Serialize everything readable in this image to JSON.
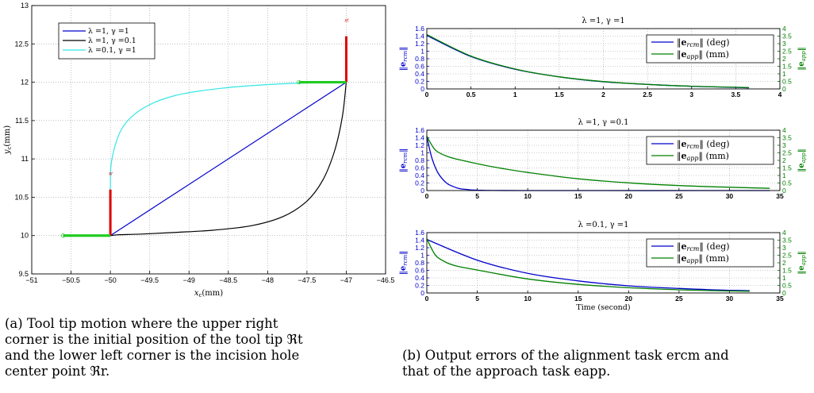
{
  "figure_a": {
    "caption_lines": [
      "(a)  Tool tip motion where the upper right",
      "corner is the initial position of the tool tip ℜt",
      "and the lower left corner is the incision hole",
      "center point ℜr."
    ]
  },
  "figure_b": {
    "caption_lines": [
      "(b) Output errors of the alignment task ercm and",
      "that of the approach task eapp."
    ]
  },
  "colors": {
    "blue": "#0000cc",
    "black": "#000000",
    "cyan": "#33e6e6",
    "green": "#008000",
    "red": "#dd0000",
    "bright_green": "#22cc22"
  },
  "chart_data": [
    {
      "id": "trajectory",
      "type": "line",
      "title": "",
      "xlabel": "xc(mm)",
      "ylabel": "yc(mm)",
      "xlim": [
        -51,
        -46.5
      ],
      "ylim": [
        9.5,
        13
      ],
      "xticks": [
        -51,
        -50.5,
        -50,
        -49.5,
        -49,
        -48.5,
        -48,
        -47.5,
        -47,
        -46.5
      ],
      "yticks": [
        9.5,
        10,
        10.5,
        11,
        11.5,
        12,
        12.5,
        13
      ],
      "xtick_labels": [
        "−51",
        "−50.5",
        "−50",
        "−49.5",
        "−49",
        "−48.5",
        "−48",
        "−47.5",
        "−47",
        "−46.5"
      ],
      "ytick_labels": [
        "9.5",
        "10",
        "10.5",
        "11",
        "11.5",
        "12",
        "12.5",
        "13"
      ],
      "grid": true,
      "legend_position": "top-left",
      "series": [
        {
          "name": "λ =1, γ =1",
          "color": "blue",
          "x": [
            -47.0,
            -50.0
          ],
          "y": [
            12.0,
            10.0
          ]
        },
        {
          "name": "λ =1, γ =0.1",
          "color": "black",
          "x": [
            -47.0,
            -47.05,
            -47.15,
            -47.3,
            -47.5,
            -47.8,
            -48.2,
            -48.7,
            -49.2,
            -49.6,
            -49.9,
            -50.0
          ],
          "y": [
            12.0,
            11.55,
            11.1,
            10.72,
            10.45,
            10.25,
            10.13,
            10.07,
            10.04,
            10.02,
            10.01,
            10.0
          ]
        },
        {
          "name": "λ =0.1, γ =1",
          "color": "cyan",
          "x": [
            -47.0,
            -47.8,
            -48.6,
            -49.2,
            -49.6,
            -49.85,
            -49.98,
            -50.0,
            -50.0
          ],
          "y": [
            12.0,
            11.98,
            11.92,
            11.82,
            11.65,
            11.4,
            11.0,
            10.6,
            10.05
          ]
        }
      ],
      "markers": [
        {
          "label": "xt",
          "x": -47.0,
          "y": 12.0
        },
        {
          "label": "xr",
          "x": -50.0,
          "y": 10.0
        }
      ],
      "tool_frames": [
        {
          "origin": [
            -47.0,
            12.0
          ],
          "red_end": [
            -47.0,
            12.6
          ],
          "green_end": [
            -47.6,
            12.0
          ]
        },
        {
          "origin": [
            -50.0,
            10.0
          ],
          "red_end": [
            -50.0,
            10.6
          ],
          "green_end": [
            -50.6,
            10.0
          ]
        }
      ]
    },
    {
      "id": "errors-1",
      "type": "line",
      "title": "λ =1, γ =1",
      "xlabel": "",
      "ylabel_left": "||ercm||",
      "ylabel_right": "||eapp||",
      "xlim": [
        0,
        4
      ],
      "ylim_left": [
        0,
        1.6
      ],
      "ylim_right": [
        0,
        4
      ],
      "xticks": [
        0,
        0.5,
        1,
        1.5,
        2,
        2.5,
        3,
        3.5,
        4
      ],
      "xtick_labels": [
        "0",
        "0.5",
        "1",
        "1.5",
        "2",
        "2.5",
        "3",
        "3.5",
        "4"
      ],
      "yticks_left": [
        0,
        0.2,
        0.4,
        0.6,
        0.8,
        1,
        1.2,
        1.4,
        1.6
      ],
      "ytick_labels_left": [
        "0",
        "0.2",
        "0.4",
        "0.6",
        "0.8",
        "1",
        "1.2",
        "1.4",
        "1.6"
      ],
      "yticks_right": [
        0,
        0.5,
        1,
        1.5,
        2,
        2.5,
        3,
        3.5,
        4
      ],
      "ytick_labels_right": [
        "0",
        "0.5",
        "1",
        "1.5",
        "2",
        "2.5",
        "3",
        "3.5",
        "4"
      ],
      "grid": true,
      "legend_position": "right",
      "legend": [
        "||ercm|| (deg)",
        "||eapp|| (mm)"
      ],
      "series": [
        {
          "name": "||ercm|| (deg)",
          "color": "blue",
          "axis": "left",
          "x": [
            0,
            0.5,
            1,
            1.5,
            2,
            2.5,
            3,
            3.5,
            3.65
          ],
          "y": [
            1.42,
            0.86,
            0.52,
            0.32,
            0.19,
            0.12,
            0.07,
            0.04,
            0.03
          ]
        },
        {
          "name": "||eapp|| (mm)",
          "color": "green",
          "axis": "right",
          "x": [
            0,
            0.5,
            1,
            1.5,
            2,
            2.5,
            3,
            3.5,
            3.65
          ],
          "y": [
            3.6,
            2.18,
            1.32,
            0.8,
            0.49,
            0.3,
            0.18,
            0.11,
            0.09
          ]
        }
      ]
    },
    {
      "id": "errors-2",
      "type": "line",
      "title": "λ =1, γ =0.1",
      "xlabel": "",
      "ylabel_left": "||ercm||",
      "ylabel_right": "||eapp||",
      "xlim": [
        0,
        35
      ],
      "ylim_left": [
        0,
        1.6
      ],
      "ylim_right": [
        0,
        4
      ],
      "xticks": [
        0,
        5,
        10,
        15,
        20,
        25,
        30,
        35
      ],
      "xtick_labels": [
        "0",
        "5",
        "10",
        "15",
        "20",
        "25",
        "30",
        "35"
      ],
      "yticks_left": [
        0,
        0.2,
        0.4,
        0.6,
        0.8,
        1,
        1.2,
        1.4,
        1.6
      ],
      "ytick_labels_left": [
        "0",
        "0.2",
        "0.4",
        "0.6",
        "0.8",
        "1",
        "1.2",
        "1.4",
        "1.6"
      ],
      "yticks_right": [
        0,
        0.5,
        1,
        1.5,
        2,
        2.5,
        3,
        3.5,
        4
      ],
      "ytick_labels_right": [
        "0",
        "0.5",
        "1",
        "1.5",
        "2",
        "2.5",
        "3",
        "3.5",
        "4"
      ],
      "grid": true,
      "legend_position": "right",
      "legend": [
        "||ercm|| (deg)",
        "||eapp|| (mm)"
      ],
      "series": [
        {
          "name": "||ercm|| (deg)",
          "color": "blue",
          "axis": "left",
          "x": [
            0,
            0.5,
            1,
            1.5,
            2,
            2.5,
            3,
            3.5,
            4,
            5,
            10,
            34
          ],
          "y": [
            1.42,
            0.86,
            0.52,
            0.32,
            0.19,
            0.12,
            0.07,
            0.04,
            0.03,
            0.01,
            0.0,
            0.0
          ]
        },
        {
          "name": "||eapp|| (mm)",
          "color": "green",
          "axis": "right",
          "x": [
            0,
            0.5,
            1,
            2,
            3,
            5,
            7,
            10,
            15,
            20,
            25,
            30,
            34
          ],
          "y": [
            3.6,
            3.0,
            2.6,
            2.27,
            2.08,
            1.78,
            1.52,
            1.2,
            0.78,
            0.51,
            0.33,
            0.22,
            0.15
          ]
        }
      ]
    },
    {
      "id": "errors-3",
      "type": "line",
      "title": "λ =0.1, γ =1",
      "xlabel": "Time (second)",
      "ylabel_left": "||ercm||",
      "ylabel_right": "||eapp||",
      "xlim": [
        0,
        35
      ],
      "ylim_left": [
        0,
        1.6
      ],
      "ylim_right": [
        0,
        4
      ],
      "xticks": [
        0,
        5,
        10,
        15,
        20,
        25,
        30,
        35
      ],
      "xtick_labels": [
        "0",
        "5",
        "10",
        "15",
        "20",
        "25",
        "30",
        "35"
      ],
      "yticks_left": [
        0,
        0.2,
        0.4,
        0.6,
        0.8,
        1,
        1.2,
        1.4,
        1.6
      ],
      "ytick_labels_left": [
        "0",
        "0.2",
        "0.4",
        "0.6",
        "0.8",
        "1",
        "1.2",
        "1.4",
        "1.6"
      ],
      "yticks_right": [
        0,
        0.5,
        1,
        1.5,
        2,
        2.5,
        3,
        3.5,
        4
      ],
      "ytick_labels_right": [
        "0",
        "0.5",
        "1",
        "1.5",
        "2",
        "2.5",
        "3",
        "3.5",
        "4"
      ],
      "grid": true,
      "legend_position": "right",
      "legend": [
        "||ercm|| (deg)",
        "||eapp|| (mm)"
      ],
      "series": [
        {
          "name": "||ercm|| (deg)",
          "color": "blue",
          "axis": "left",
          "x": [
            0,
            5,
            10,
            15,
            20,
            25,
            30,
            32
          ],
          "y": [
            1.42,
            0.87,
            0.52,
            0.32,
            0.19,
            0.12,
            0.07,
            0.06
          ]
        },
        {
          "name": "||eapp|| (mm)",
          "color": "green",
          "axis": "right",
          "x": [
            0,
            0.5,
            1,
            2,
            3,
            5,
            10,
            15,
            20,
            25,
            30,
            32
          ],
          "y": [
            3.6,
            2.9,
            2.4,
            2.0,
            1.78,
            1.52,
            0.93,
            0.57,
            0.35,
            0.21,
            0.13,
            0.11
          ]
        }
      ]
    }
  ]
}
